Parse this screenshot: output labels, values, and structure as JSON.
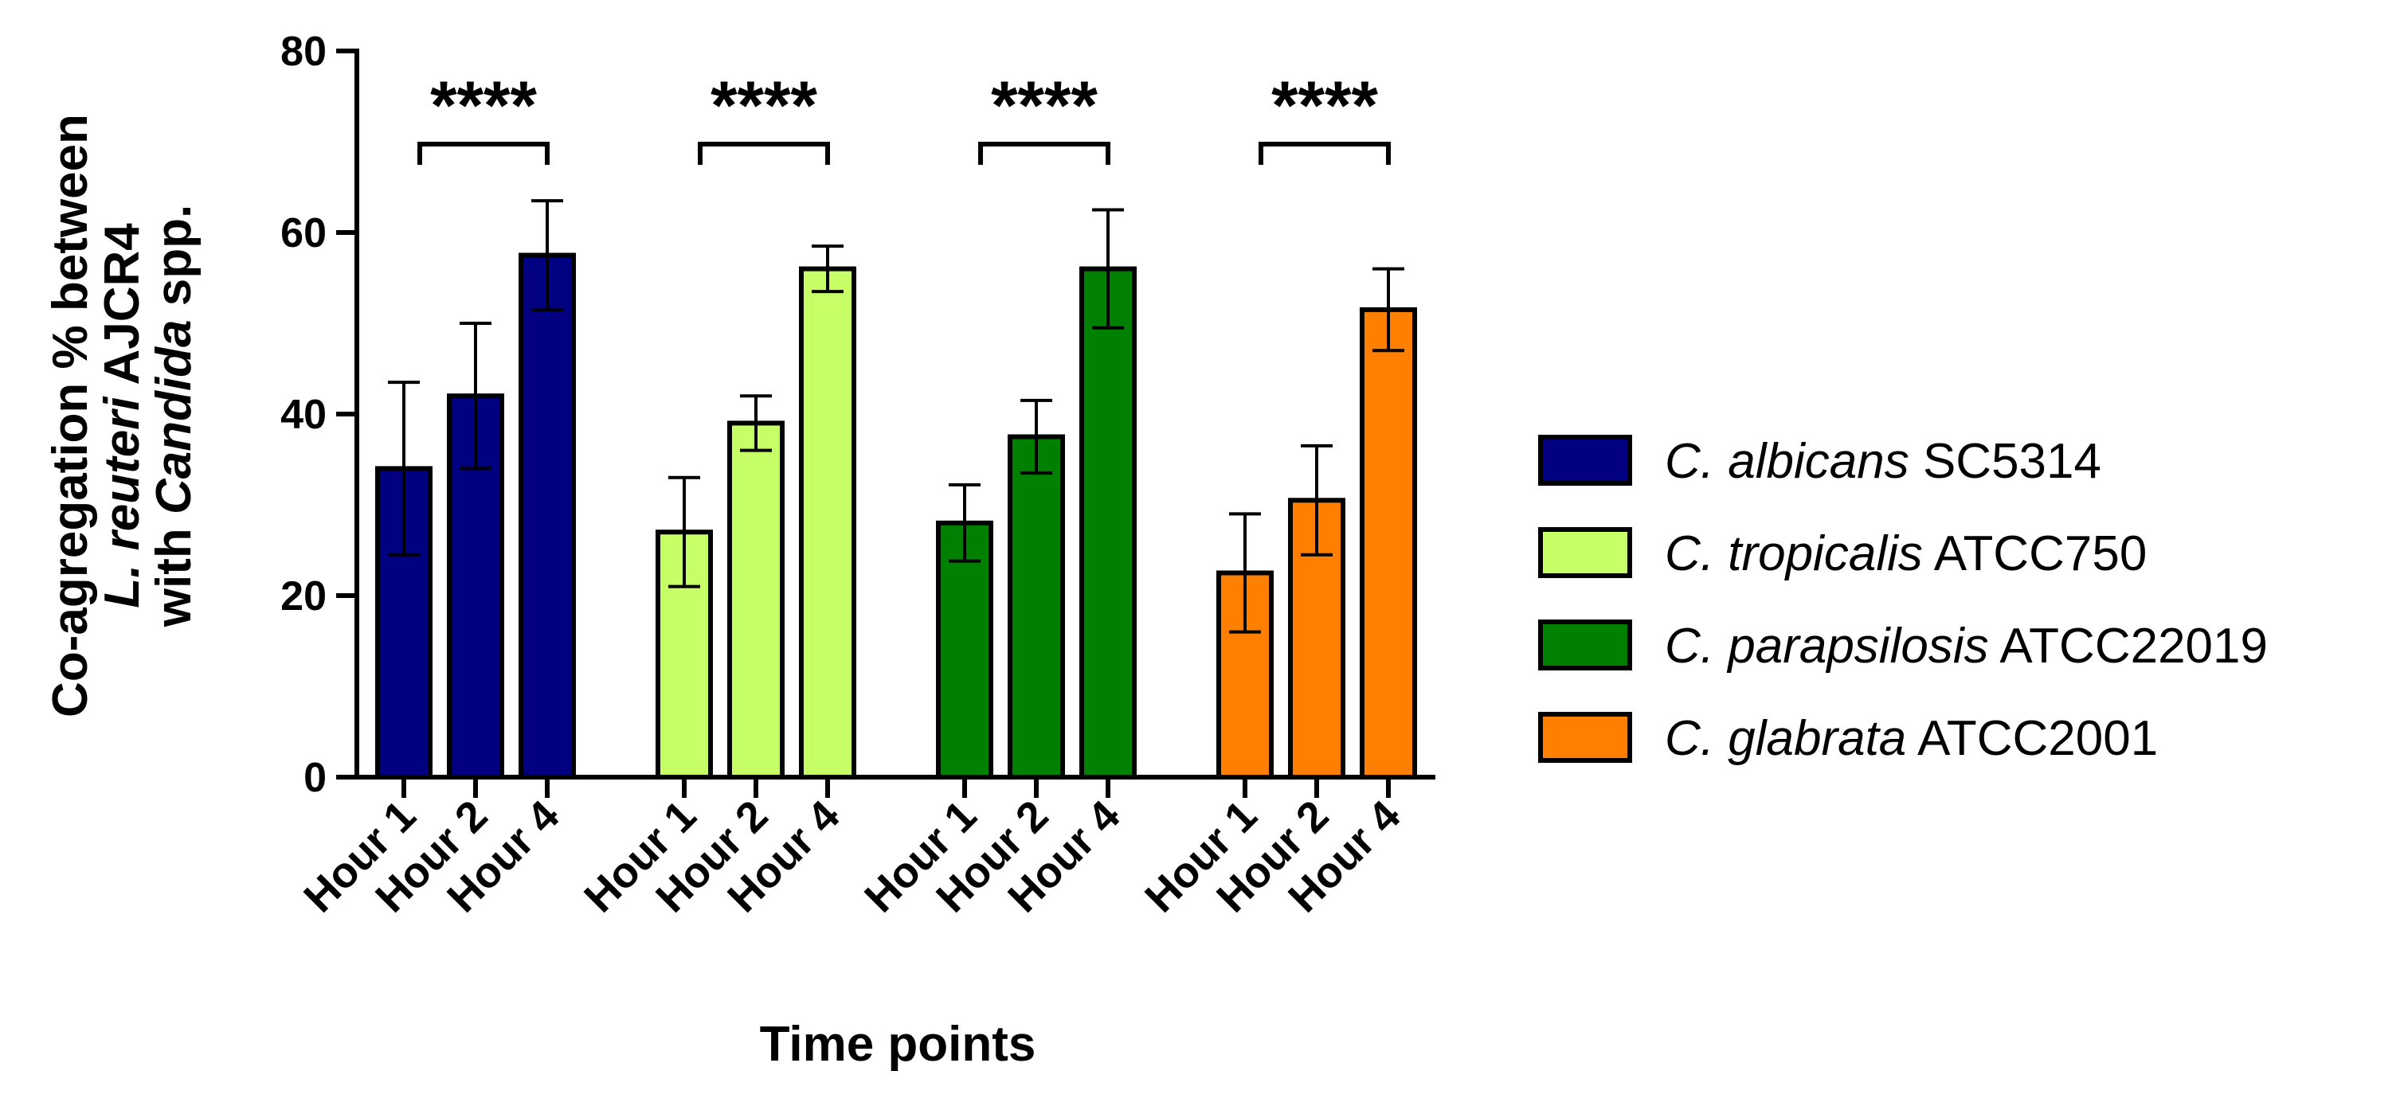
{
  "chart_data": {
    "type": "bar",
    "title": "",
    "xlabel": "Time points",
    "ylabel_lines": [
      [
        {
          "text": "Co-agregation % between",
          "italic": false
        }
      ],
      [
        {
          "text": "L. reuteri",
          "italic": true
        },
        {
          "text": " AJCR4",
          "italic": false
        }
      ],
      [
        {
          "text": "with ",
          "italic": false
        },
        {
          "text": "Candida",
          "italic": true
        },
        {
          "text": " spp.",
          "italic": false
        }
      ]
    ],
    "ylim": [
      0,
      80
    ],
    "yticks": [
      "0",
      "20",
      "40",
      "60",
      "80"
    ],
    "categories": [
      "Hour 1",
      "Hour 2",
      "Hour 4"
    ],
    "significance": "****",
    "series": [
      {
        "name": "C. albicans",
        "strain": "SC5314",
        "color": "#000080",
        "values": [
          34,
          42,
          57.5
        ],
        "errors": [
          9.5,
          8,
          6
        ]
      },
      {
        "name": "C. tropicalis",
        "strain": "ATCC750",
        "color": "#C6FF66",
        "values": [
          27,
          39,
          56
        ],
        "errors": [
          6,
          3,
          2.5
        ]
      },
      {
        "name": "C. parapsilosis",
        "strain": "ATCC22019",
        "color": "#008000",
        "values": [
          28,
          37.5,
          56
        ],
        "errors": [
          4.2,
          4,
          6.5
        ]
      },
      {
        "name": "C. glabrata",
        "strain": "ATCC2001",
        "color": "#FF8000",
        "values": [
          22.5,
          30.5,
          51.5
        ],
        "errors": [
          6.5,
          6,
          4.5
        ]
      }
    ]
  }
}
